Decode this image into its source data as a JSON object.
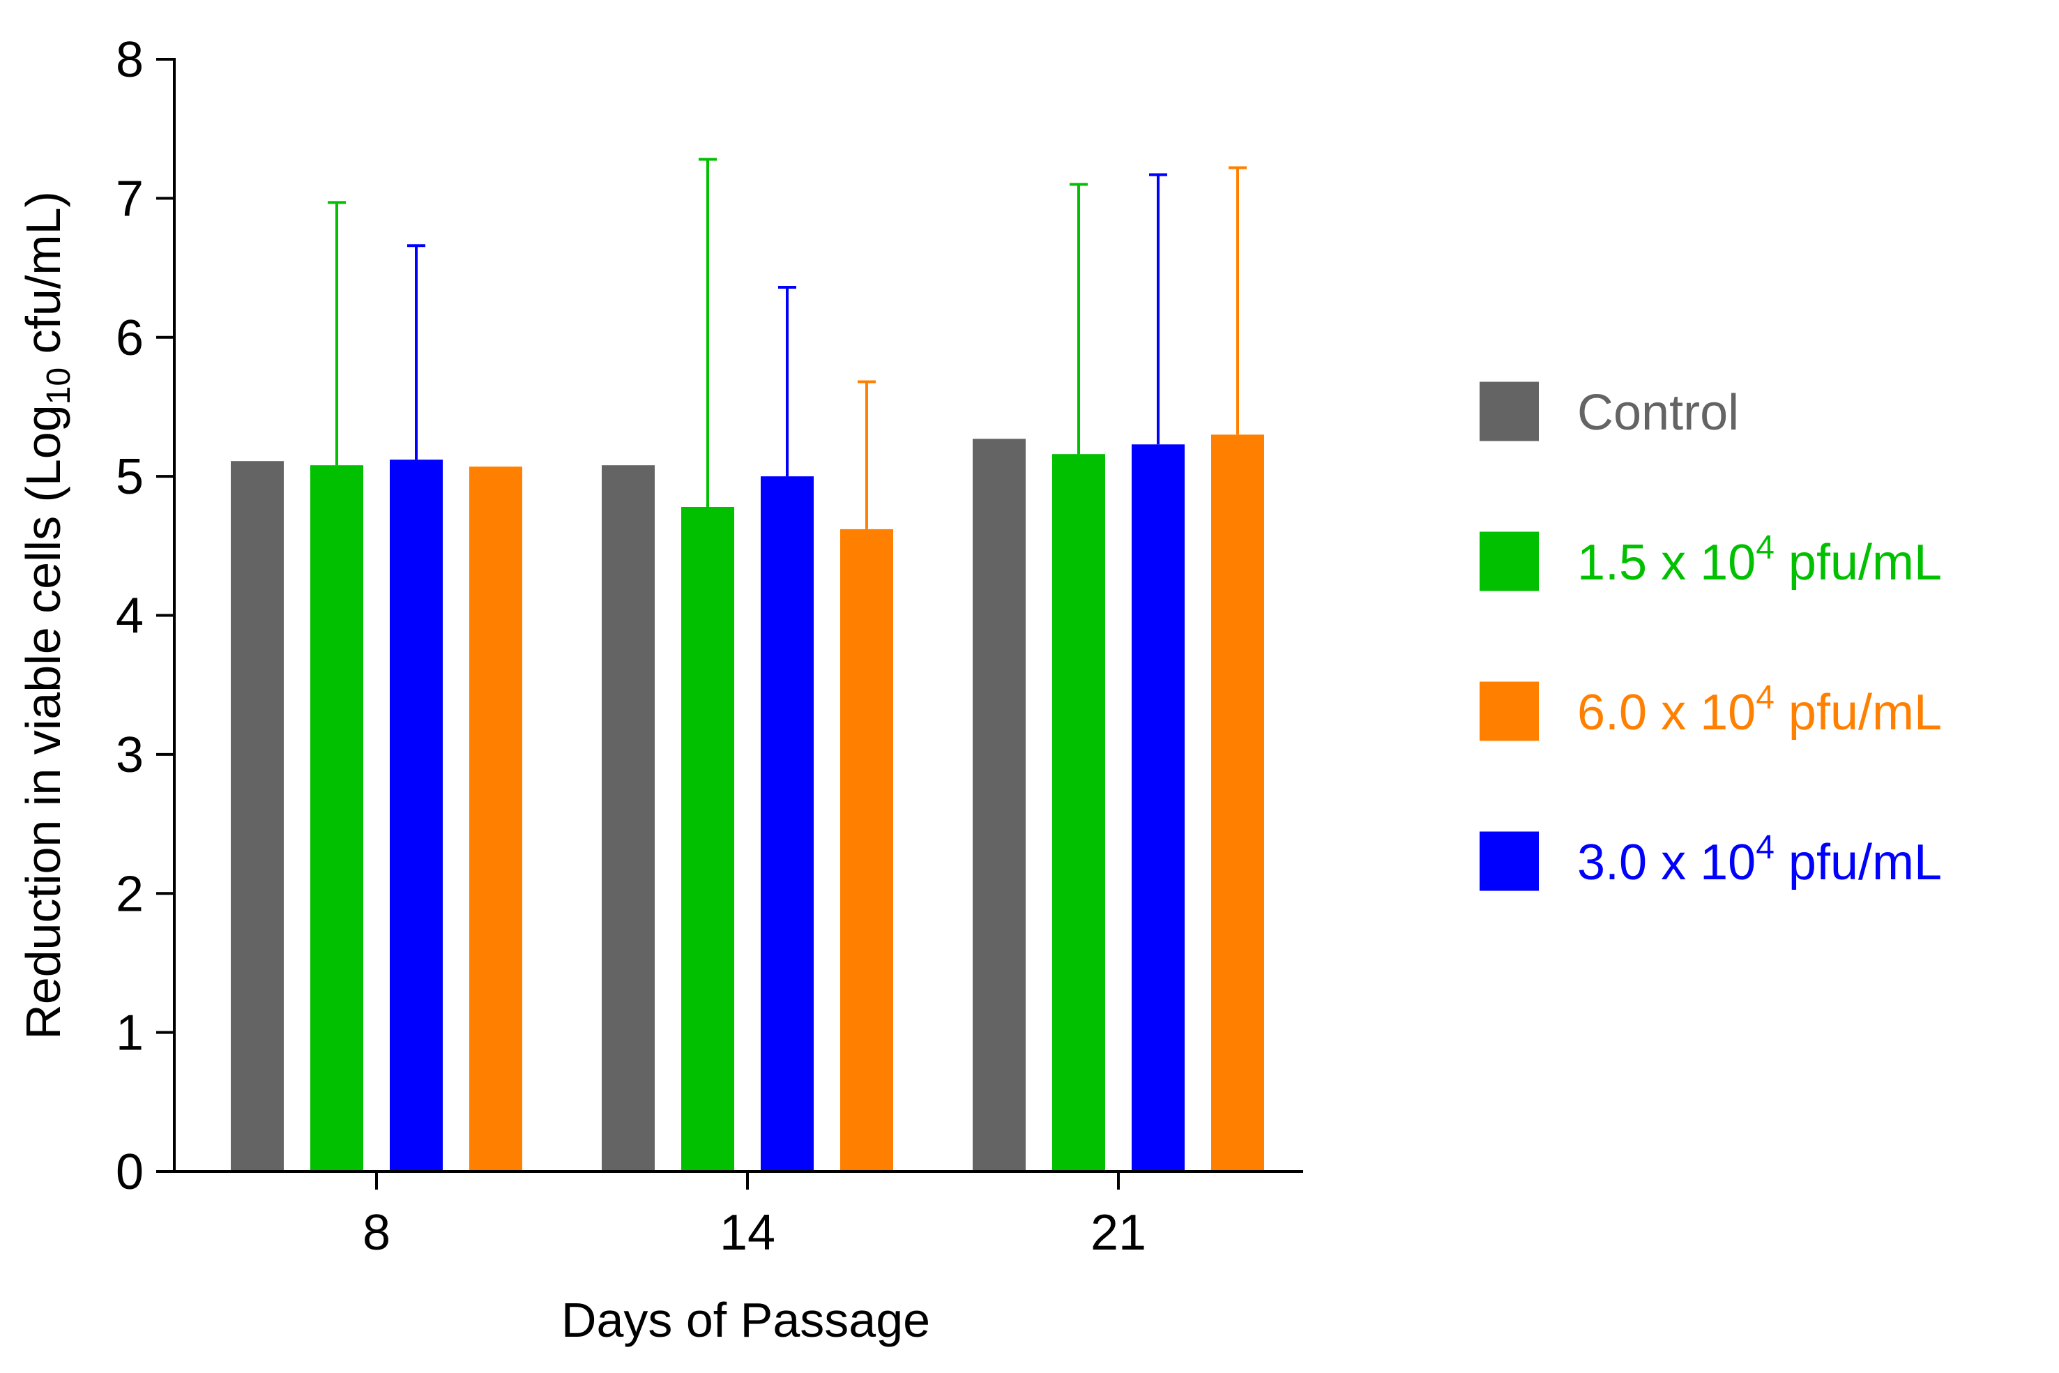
{
  "chart_data": {
    "type": "bar",
    "title": "",
    "xlabel": "Days of Passage",
    "ylabel": {
      "main": "Reduction in viable cells (Log",
      "sub": "10",
      "tail": " cfu/mL)"
    },
    "ylim": [
      0,
      8
    ],
    "yticks": [
      "0",
      "1",
      "2",
      "3",
      "4",
      "5",
      "6",
      "7",
      "8"
    ],
    "categories": [
      "8",
      "14",
      "21"
    ],
    "grid": false,
    "legend_position": "right",
    "error_bars": "upper only",
    "series": [
      {
        "name": "Control",
        "legend": {
          "pre": "Control",
          "exp": "",
          "post": ""
        },
        "color": "#646464",
        "values": [
          5.11,
          5.08,
          5.27
        ],
        "error_upper": [
          null,
          null,
          null
        ]
      },
      {
        "name": "1.5 x 10^4 pfu/mL",
        "legend": {
          "pre": "1.5 x 10",
          "exp": "4",
          "post": " pfu/mL"
        },
        "color": "#00c000",
        "values": [
          5.08,
          4.78,
          5.16
        ],
        "error_upper": [
          6.97,
          7.28,
          7.1
        ]
      },
      {
        "name": "3.0 x 10^4 pfu/mL",
        "legend": {
          "pre": "3.0 x 10",
          "exp": "4",
          "post": " pfu/mL"
        },
        "color": "#0000ff",
        "values": [
          5.12,
          5.0,
          5.23
        ],
        "error_upper": [
          6.66,
          6.36,
          7.17
        ]
      },
      {
        "name": "6.0 x 10^4 pfu/mL",
        "legend": {
          "pre": "6.0 x 10",
          "exp": "4",
          "post": " pfu/mL"
        },
        "color": "#ff8000",
        "values": [
          5.07,
          4.62,
          5.3
        ],
        "error_upper": [
          null,
          5.68,
          7.22
        ]
      }
    ],
    "legend_order": [
      0,
      1,
      3,
      2
    ]
  }
}
